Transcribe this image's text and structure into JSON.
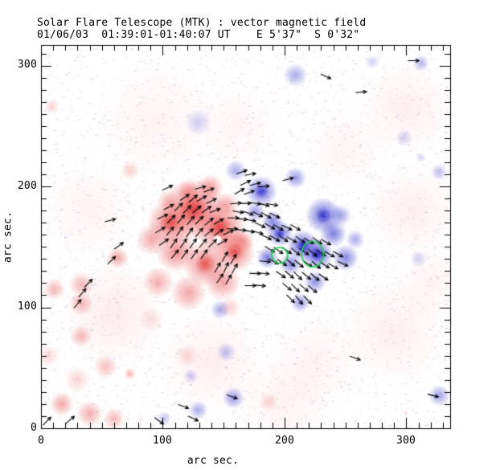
{
  "header": {
    "line1": "Solar Flare Telescope (MTK) : vector magnetic field",
    "line2": "01/06/03  01:39:01-01:40:07 UT    E 5'37\"  S 0'32\""
  },
  "axes": {
    "xlabel": "arc sec.",
    "ylabel": "arc sec.",
    "x_tick_labels": [
      "0",
      "100",
      "200",
      "300"
    ],
    "y_tick_labels": [
      "0",
      "100",
      "200",
      "300"
    ]
  },
  "chart_data": {
    "type": "heatmap",
    "title": "Solar Flare Telescope (MTK) : vector magnetic field",
    "subtitle": "01/06/03  01:39:01-01:40:07 UT    E 5'37\"  S 0'32\"",
    "xlabel": "arc sec.",
    "ylabel": "arc sec.",
    "x_range": [
      0,
      336
    ],
    "y_range": [
      0,
      317
    ],
    "x_major_ticks": [
      0,
      100,
      200,
      300
    ],
    "y_major_ticks": [
      0,
      100,
      200,
      300
    ],
    "minor_tick_step": 10,
    "grid": false,
    "legend": "none",
    "positive_color": "#ec6060",
    "positive_core_color": "#e03a3a",
    "negative_color": "#4646d4",
    "negative_core_color": "#1c1cc4",
    "contour_color": "#1ecc4a",
    "arrow_color": "#000000",
    "arrow_len": 9,
    "noise": {
      "count": 3400,
      "pink_ratio": 0.55,
      "pink_color": "#ee9e9e",
      "lavender_color": "#9e9ee6",
      "white_rough_count": 1300
    },
    "haze_blobs": [
      [
        290,
        80,
        45,
        0.1
      ],
      [
        305,
        180,
        40,
        0.1
      ],
      [
        300,
        265,
        40,
        0.1
      ],
      [
        60,
        95,
        45,
        0.12
      ],
      [
        140,
        55,
        45,
        0.1
      ],
      [
        95,
        255,
        50,
        0.08
      ],
      [
        225,
        55,
        40,
        0.08
      ],
      [
        40,
        180,
        40,
        0.08
      ],
      [
        200,
        20,
        40,
        0.08
      ],
      [
        320,
        120,
        30,
        0.08
      ],
      [
        250,
        230,
        35,
        0.07
      ],
      [
        160,
        250,
        35,
        0.07
      ]
    ],
    "positive_blobs": [
      [
        125,
        181,
        26,
        0.92
      ],
      [
        106,
        170,
        19,
        0.8
      ],
      [
        147,
        166,
        21,
        0.88
      ],
      [
        159,
        146,
        17,
        0.8
      ],
      [
        135,
        136,
        19,
        0.75
      ],
      [
        111,
        146,
        17,
        0.7
      ],
      [
        91,
        156,
        13,
        0.55
      ],
      [
        149,
        121,
        15,
        0.6
      ],
      [
        121,
        112,
        15,
        0.55
      ],
      [
        96,
        121,
        13,
        0.5
      ],
      [
        139,
        199,
        11,
        0.6
      ],
      [
        121,
        196,
        9,
        0.5
      ],
      [
        104,
        188,
        9,
        0.4
      ],
      [
        152,
        185,
        10,
        0.55
      ],
      [
        165,
        155,
        10,
        0.6
      ],
      [
        63,
        141,
        9,
        0.55
      ],
      [
        33,
        103,
        10,
        0.45
      ],
      [
        33,
        119,
        10,
        0.45
      ],
      [
        11,
        115,
        9,
        0.45
      ],
      [
        33,
        76,
        9,
        0.45
      ],
      [
        53,
        51,
        10,
        0.4
      ],
      [
        73,
        213,
        8,
        0.3
      ],
      [
        9,
        266,
        6,
        0.3
      ],
      [
        17,
        20,
        10,
        0.55
      ],
      [
        40,
        12,
        11,
        0.5
      ],
      [
        60,
        8,
        9,
        0.45
      ],
      [
        73,
        45,
        5,
        0.45
      ],
      [
        30,
        40,
        11,
        0.25
      ],
      [
        6,
        60,
        9,
        0.25
      ],
      [
        155,
        100,
        9,
        0.3
      ],
      [
        187,
        22,
        8,
        0.25
      ],
      [
        120,
        60,
        9,
        0.25
      ],
      [
        90,
        90,
        10,
        0.2
      ]
    ],
    "negative_blobs": [
      [
        181,
        196,
        13,
        0.75
      ],
      [
        209,
        207,
        9,
        0.55
      ],
      [
        232,
        176,
        15,
        0.8
      ],
      [
        196,
        161,
        11,
        0.75
      ],
      [
        215,
        151,
        13,
        0.85
      ],
      [
        227,
        144,
        13,
        0.9
      ],
      [
        240,
        161,
        11,
        0.7
      ],
      [
        250,
        141,
        11,
        0.65
      ],
      [
        205,
        136,
        9,
        0.65
      ],
      [
        225,
        121,
        9,
        0.6
      ],
      [
        213,
        104,
        8,
        0.55
      ],
      [
        190,
        171,
        9,
        0.65
      ],
      [
        176,
        179,
        8,
        0.55
      ],
      [
        246,
        176,
        9,
        0.5
      ],
      [
        258,
        156,
        8,
        0.45
      ],
      [
        186,
        141,
        9,
        0.7
      ],
      [
        209,
        292,
        10,
        0.45
      ],
      [
        272,
        303,
        6,
        0.25
      ],
      [
        312,
        302,
        7,
        0.4
      ],
      [
        160,
        213,
        9,
        0.45
      ],
      [
        129,
        253,
        11,
        0.25
      ],
      [
        298,
        240,
        7,
        0.25
      ],
      [
        327,
        212,
        7,
        0.35
      ],
      [
        147,
        98,
        8,
        0.45
      ],
      [
        152,
        63,
        8,
        0.35
      ],
      [
        158,
        25,
        9,
        0.55
      ],
      [
        129,
        15,
        8,
        0.45
      ],
      [
        101,
        8,
        6,
        0.35
      ],
      [
        327,
        27,
        9,
        0.5
      ],
      [
        123,
        43,
        6,
        0.3
      ],
      [
        310,
        140,
        7,
        0.25
      ],
      [
        312,
        224,
        4,
        0.25
      ]
    ],
    "white_hole": [
      145,
      156,
      4
    ],
    "contours": [
      [
        196,
        143,
        6.5,
        6.5
      ],
      [
        223,
        144,
        9,
        10.5
      ]
    ],
    "arrows": [
      [
        104,
        199,
        25
      ],
      [
        131,
        199,
        15
      ],
      [
        138,
        197,
        20
      ],
      [
        118,
        191,
        35
      ],
      [
        125,
        190,
        40
      ],
      [
        132,
        190,
        30
      ],
      [
        140,
        188,
        25
      ],
      [
        105,
        183,
        30
      ],
      [
        113,
        183,
        45
      ],
      [
        120,
        181,
        45
      ],
      [
        128,
        181,
        40
      ],
      [
        136,
        181,
        35
      ],
      [
        143,
        180,
        20
      ],
      [
        100,
        175,
        25
      ],
      [
        107,
        173,
        45
      ],
      [
        115,
        173,
        50
      ],
      [
        123,
        172,
        50
      ],
      [
        130,
        172,
        45
      ],
      [
        138,
        171,
        40
      ],
      [
        146,
        171,
        30
      ],
      [
        98,
        164,
        30
      ],
      [
        106,
        163,
        50
      ],
      [
        114,
        163,
        55
      ],
      [
        122,
        162,
        55
      ],
      [
        130,
        162,
        50
      ],
      [
        138,
        162,
        40
      ],
      [
        146,
        162,
        35
      ],
      [
        154,
        162,
        25
      ],
      [
        101,
        154,
        35
      ],
      [
        109,
        153,
        55
      ],
      [
        117,
        153,
        55
      ],
      [
        125,
        153,
        55
      ],
      [
        133,
        153,
        50
      ],
      [
        141,
        153,
        45
      ],
      [
        149,
        154,
        30
      ],
      [
        110,
        144,
        50
      ],
      [
        118,
        144,
        55
      ],
      [
        126,
        144,
        55
      ],
      [
        134,
        144,
        55
      ],
      [
        151,
        142,
        60
      ],
      [
        158,
        140,
        60
      ],
      [
        145,
        133,
        60
      ],
      [
        152,
        133,
        65
      ],
      [
        159,
        132,
        60
      ],
      [
        147,
        124,
        55
      ],
      [
        154,
        123,
        60
      ],
      [
        158,
        174,
        0
      ],
      [
        165,
        173,
        -5
      ],
      [
        172,
        172,
        -10
      ],
      [
        157,
        165,
        0
      ],
      [
        164,
        164,
        -5
      ],
      [
        171,
        163,
        -10
      ],
      [
        178,
        162,
        -15
      ],
      [
        160,
        186,
        5
      ],
      [
        168,
        186,
        0
      ],
      [
        165,
        212,
        20
      ],
      [
        172,
        210,
        10
      ],
      [
        168,
        203,
        25
      ],
      [
        176,
        202,
        15
      ],
      [
        183,
        200,
        5
      ],
      [
        163,
        196,
        30
      ],
      [
        171,
        195,
        20
      ],
      [
        176,
        186,
        -10
      ],
      [
        183,
        185,
        -15
      ],
      [
        190,
        185,
        -10
      ],
      [
        162,
        179,
        -10
      ],
      [
        170,
        178,
        -20
      ],
      [
        178,
        177,
        -25
      ],
      [
        185,
        176,
        -30
      ],
      [
        192,
        176,
        -25
      ],
      [
        180,
        168,
        -25
      ],
      [
        188,
        167,
        -30
      ],
      [
        195,
        166,
        -30
      ],
      [
        202,
        166,
        -25
      ],
      [
        209,
        166,
        -30
      ],
      [
        185,
        158,
        -25
      ],
      [
        192,
        157,
        -30
      ],
      [
        199,
        157,
        -35
      ],
      [
        206,
        156,
        -30
      ],
      [
        213,
        156,
        -35
      ],
      [
        220,
        155,
        -30
      ],
      [
        227,
        155,
        -35
      ],
      [
        234,
        154,
        -30
      ],
      [
        188,
        148,
        -30
      ],
      [
        195,
        147,
        -35
      ],
      [
        202,
        147,
        -35
      ],
      [
        209,
        146,
        -40
      ],
      [
        216,
        146,
        -35
      ],
      [
        223,
        145,
        -40
      ],
      [
        230,
        145,
        -35
      ],
      [
        237,
        144,
        -30
      ],
      [
        244,
        144,
        -30
      ],
      [
        184,
        138,
        -5
      ],
      [
        191,
        138,
        -30
      ],
      [
        198,
        137,
        -35
      ],
      [
        205,
        137,
        -40
      ],
      [
        212,
        136,
        -40
      ],
      [
        219,
        136,
        -35
      ],
      [
        226,
        135,
        -40
      ],
      [
        233,
        135,
        -35
      ],
      [
        240,
        134,
        -30
      ],
      [
        248,
        136,
        -25
      ],
      [
        176,
        128,
        0
      ],
      [
        183,
        128,
        -5
      ],
      [
        197,
        127,
        -35
      ],
      [
        204,
        127,
        -40
      ],
      [
        211,
        126,
        -45
      ],
      [
        218,
        126,
        -40
      ],
      [
        225,
        125,
        -40
      ],
      [
        232,
        125,
        -35
      ],
      [
        172,
        118,
        0
      ],
      [
        180,
        118,
        -5
      ],
      [
        202,
        117,
        -40
      ],
      [
        209,
        116,
        -45
      ],
      [
        216,
        116,
        -40
      ],
      [
        223,
        115,
        -40
      ],
      [
        205,
        107,
        -45
      ],
      [
        212,
        106,
        -50
      ],
      [
        219,
        106,
        -45
      ],
      [
        5,
        6,
        45
      ],
      [
        24,
        7,
        40
      ],
      [
        234,
        291,
        -25
      ],
      [
        263,
        278,
        5
      ],
      [
        306,
        304,
        0
      ],
      [
        203,
        206,
        15
      ],
      [
        258,
        58,
        -20
      ],
      [
        322,
        27,
        -15
      ],
      [
        117,
        18,
        -20
      ],
      [
        125,
        8,
        -25
      ],
      [
        157,
        26,
        -20
      ],
      [
        97,
        6,
        -35
      ],
      [
        64,
        151,
        35
      ],
      [
        30,
        103,
        50
      ],
      [
        34,
        112,
        50
      ],
      [
        39,
        120,
        45
      ],
      [
        57,
        172,
        15
      ],
      [
        58,
        139,
        45
      ]
    ]
  }
}
